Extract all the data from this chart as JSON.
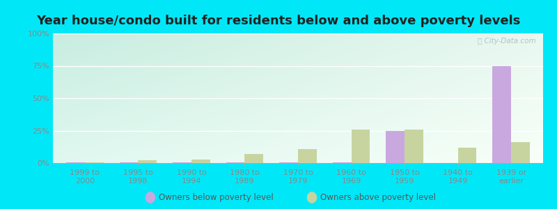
{
  "title": "Year house/condo built for residents below and above poverty levels",
  "categories": [
    "1999 to\n2000",
    "1995 to\n1998",
    "1990 to\n1994",
    "1980 to\n1989",
    "1970 to\n1979",
    "1960 to\n1969",
    "1950 to\n1959",
    "1940 to\n1949",
    "1939 or\nearlier"
  ],
  "below_poverty": [
    0.5,
    0.5,
    0.5,
    0.5,
    0.5,
    0.5,
    25,
    0,
    75
  ],
  "above_poverty": [
    0.5,
    2,
    2.5,
    7,
    11,
    26,
    26,
    12,
    16
  ],
  "below_color": "#c9a8e0",
  "above_color": "#c8d4a0",
  "ylim": [
    0,
    100
  ],
  "yticks": [
    0,
    25,
    50,
    75,
    100
  ],
  "ytick_labels": [
    "0%",
    "25%",
    "50%",
    "75%",
    "100%"
  ],
  "bg_gradient_topleft": "#c8ede0",
  "bg_gradient_bottomright": "#f5fdf0",
  "outer_bg": "#00e8f8",
  "bar_width": 0.35,
  "legend_below": "Owners below poverty level",
  "legend_above": "Owners above poverty level",
  "title_fontsize": 13,
  "tick_fontsize": 8,
  "tick_color": "#888888",
  "watermark": "ⓘ City-Data.com"
}
